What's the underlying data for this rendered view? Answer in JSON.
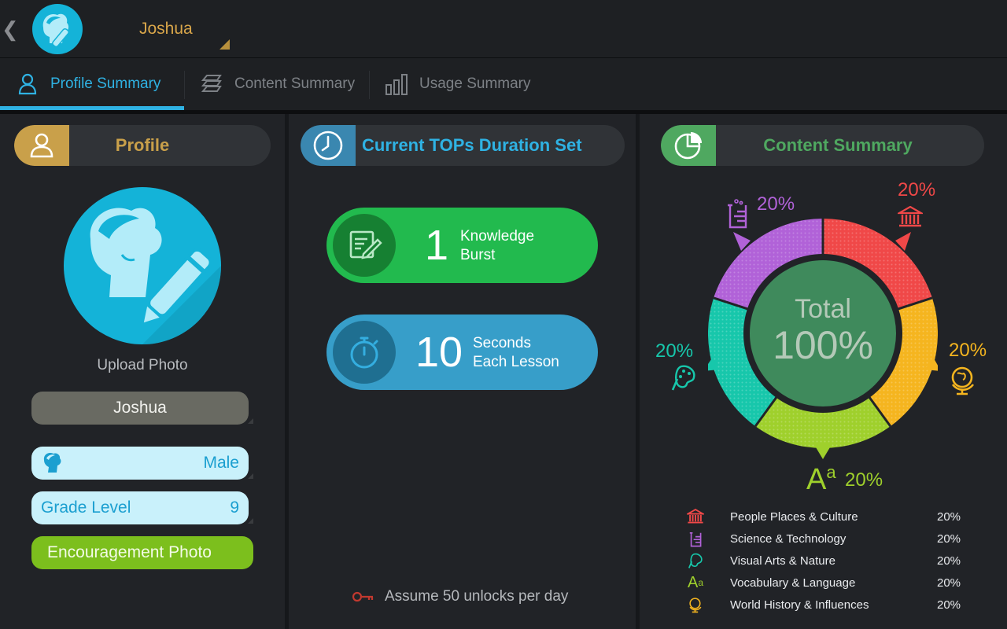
{
  "topbar": {
    "user_name": "Joshua"
  },
  "tabs": [
    {
      "label": "Profile Summary",
      "icon": "person-outline-icon",
      "active": true
    },
    {
      "label": "Content Summary",
      "icon": "stack-icon",
      "active": false
    },
    {
      "label": "Usage Summary",
      "icon": "bar-chart-icon",
      "active": false
    }
  ],
  "profile": {
    "title": "Profile",
    "upload_photo": "Upload Photo",
    "name": "Joshua",
    "gender": "Male",
    "grade_label": "Grade Level",
    "grade_value": "9",
    "encouragement_label": "Encouragement Photo"
  },
  "duration": {
    "title": "Current TOPs Duration Set",
    "burst_count": "1",
    "burst_line1": "Knowledge",
    "burst_line2": "Burst",
    "seconds_count": "10",
    "seconds_line1": "Seconds",
    "seconds_line2": "Each Lesson",
    "unlock_note": "Assume 50 unlocks per day"
  },
  "content_summary": {
    "title": "Content Summary",
    "total_label": "Total",
    "total_value": "100%",
    "segment_percents": {
      "people": "20%",
      "science": "20%",
      "arts": "20%",
      "vocab": "20%",
      "history": "20%"
    },
    "legend": [
      {
        "name": "People Places & Culture",
        "value": "20%",
        "icon": "museum-icon",
        "color": "#f04848"
      },
      {
        "name": "Science & Technology",
        "value": "20%",
        "icon": "beaker-icon",
        "color": "#b162d8"
      },
      {
        "name": "Visual Arts & Nature",
        "value": "20%",
        "icon": "palette-icon",
        "color": "#17c7ab"
      },
      {
        "name": "Vocabulary & Language",
        "value": "20%",
        "icon": "letters-icon",
        "color": "#9fd02c"
      },
      {
        "name": "World History & Influences",
        "value": "20%",
        "icon": "globe-icon",
        "color": "#f5b51f"
      }
    ]
  },
  "colors": {
    "accent_blue": "#2fb2e3",
    "profile_gold": "#c9a04a",
    "content_green": "#4fa860"
  }
}
